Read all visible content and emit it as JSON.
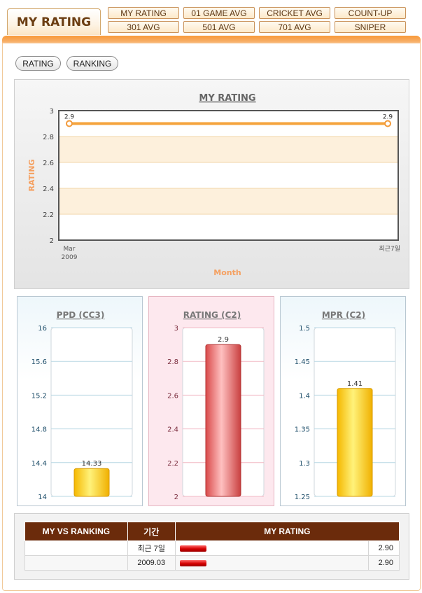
{
  "header": {
    "title": "MY RATING",
    "tabs": [
      {
        "label": "MY RATING"
      },
      {
        "label": "01 GAME AVG"
      },
      {
        "label": "CRICKET AVG"
      },
      {
        "label": "COUNT-UP"
      },
      {
        "label": "301 AVG"
      },
      {
        "label": "501 AVG"
      },
      {
        "label": "701 AVG"
      },
      {
        "label": "SNIPER"
      }
    ]
  },
  "toggles": {
    "rating": "RATING",
    "ranking": "RANKING"
  },
  "colors": {
    "accent": "#f7a043",
    "header_dark": "#6b2b0b",
    "line": "#f5a33c",
    "yellow_bar": "#ffd21a",
    "red_bar": "#f08080"
  },
  "chart_data": [
    {
      "type": "line",
      "title": "MY RATING",
      "xlabel": "Month",
      "ylabel": "RATING",
      "categories": [
        "Mar 2009",
        "최근7일"
      ],
      "x_tick_labels": [
        [
          "Mar",
          "2009"
        ],
        [
          "최근7일"
        ]
      ],
      "values": [
        2.9,
        2.9
      ],
      "data_labels": [
        "2.9",
        "2.9"
      ],
      "ylim": [
        2,
        3
      ],
      "yticks": [
        "3",
        "2.8",
        "2.6",
        "2.4",
        "2.2",
        "2"
      ],
      "grid": "alternating horizontal bands"
    },
    {
      "type": "bar",
      "title": "PPD (CC3)",
      "values": [
        14.33
      ],
      "data_labels": [
        "14.33"
      ],
      "ylim": [
        14,
        16
      ],
      "yticks": [
        "16",
        "15.6",
        "15.2",
        "14.8",
        "14.4",
        "14"
      ]
    },
    {
      "type": "bar",
      "title": "RATING (C2)",
      "values": [
        2.9
      ],
      "data_labels": [
        "2.9"
      ],
      "ylim": [
        2,
        3
      ],
      "yticks": [
        "3",
        "2.8",
        "2.6",
        "2.4",
        "2.2",
        "2"
      ]
    },
    {
      "type": "bar",
      "title": "MPR (C2)",
      "values": [
        1.41
      ],
      "data_labels": [
        "1.41"
      ],
      "ylim": [
        1.25,
        1.5
      ],
      "yticks": [
        "1.5",
        "1.45",
        "1.4",
        "1.35",
        "1.3",
        "1.25"
      ]
    }
  ],
  "ranking": {
    "headers": [
      "MY VS RANKING",
      "기간",
      "MY RATING"
    ],
    "rows": [
      {
        "name": "",
        "period": "최근 7일",
        "value": "2.90"
      },
      {
        "name": "",
        "period": "2009.03",
        "value": "2.90"
      }
    ]
  }
}
